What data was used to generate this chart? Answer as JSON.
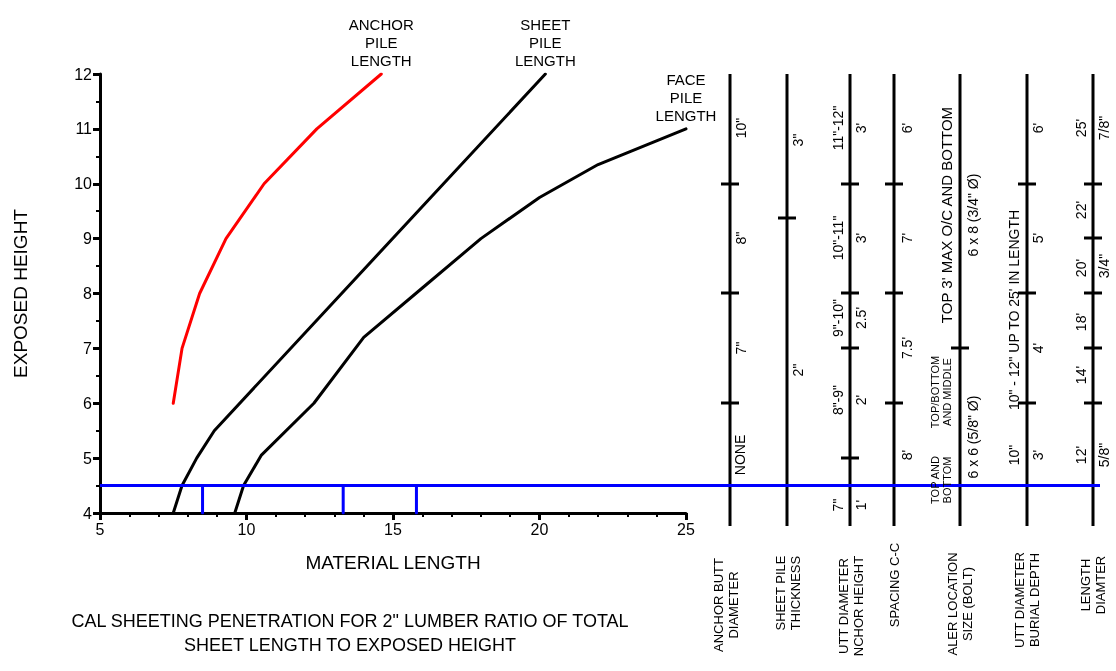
{
  "chart_data": {
    "type": "line",
    "title": "CAL SHEETING PENETRATION FOR 2\" LUMBER RATIO OF TOTAL\nSHEET LENGTH TO EXPOSED HEIGHT",
    "xlabel": "MATERIAL LENGTH",
    "ylabel": "EXPOSED HEIGHT",
    "xlim": [
      5,
      25
    ],
    "xticks": [
      5,
      10,
      15,
      20,
      25
    ],
    "ylim": [
      4,
      12
    ],
    "yticks": [
      4,
      5,
      6,
      7,
      8,
      9,
      10,
      11,
      12
    ],
    "grid": false,
    "marker": "none",
    "line_style": "solid",
    "series": [
      {
        "color": "#ff0000",
        "x": [
          7.5,
          7.8,
          8.4,
          9.3,
          10.6,
          12.4,
          14.6
        ],
        "values": [
          6,
          7,
          8,
          9,
          10,
          11,
          12
        ]
      },
      {
        "color": "#000000",
        "x": [
          7.5,
          7.8,
          8.3,
          8.9,
          20.2
        ],
        "values": [
          4,
          4.5,
          5,
          5.5,
          12
        ]
      },
      {
        "color": "#000000",
        "x": [
          9.6,
          9.9,
          10.5,
          12.3,
          14,
          16,
          18,
          20,
          22,
          25
        ],
        "values": [
          4,
          4.5,
          5.05,
          6,
          7.2,
          8.1,
          9,
          9.75,
          10.35,
          11
        ]
      },
      {
        "color": "#0000ff",
        "x": [
          8.5,
          8.5,
          10,
          13.3,
          13.3,
          14,
          15.8,
          15.8
        ],
        "values": [
          4,
          4.5,
          null,
          4,
          4.5,
          null,
          4,
          4.5
        ]
      }
    ],
    "ref_lines": [
      {
        "axis": "y",
        "value": 4.5,
        "color": "#0000ff"
      }
    ],
    "annotations": [
      {
        "text": "ANCHOR\nPILE\nLENGTH",
        "x": 14.6,
        "y": 12
      },
      {
        "text": "SHEET\nPILE\nLENGTH",
        "x": 20.2,
        "y": 12
      },
      {
        "text": "FACE\nPILE\nLENGTH",
        "x": 25,
        "y": 11
      },
      "10\"",
      "8\"",
      "7\"",
      "NONE",
      "3\"",
      "2\"",
      "11\"-12\"",
      "10\"-11\"",
      "9\"-10\"",
      "8\"-9\"",
      "7\"",
      "3'",
      "3'",
      "2.5'",
      "2'",
      "1'",
      "6'",
      "7'",
      "7.5'",
      "8'",
      "TOP 3' MAX O/C AND BOTTOM",
      "6 x 8 (3/4\" Ø)",
      "TOP/BOTTOM\nAND MIDDLE",
      "TOP AND\nBOTTOM",
      "6 x 6 (5/8\" Ø)",
      "10\" - 12\" UP TO 25' IN LENGTH",
      "10\"",
      "6'",
      "5'",
      "4'",
      "3'",
      "25'",
      "22'",
      "20'",
      "18'",
      "14'",
      "12'",
      "7/8\"",
      "3/4\"",
      "5/8\"",
      "ANCHOR BUTT\nDIAMETER",
      "SHEET PILE\nTHICKNESS",
      "UTT DIAMETER\nNCHOR HEIGHT",
      "SPACING C-C",
      "ALER LOCATION\nSIZE (BOLT)",
      "UTT DIAMETER\nBURIAL DEPTH",
      "LENGTH\nDIAMTER"
    ]
  }
}
